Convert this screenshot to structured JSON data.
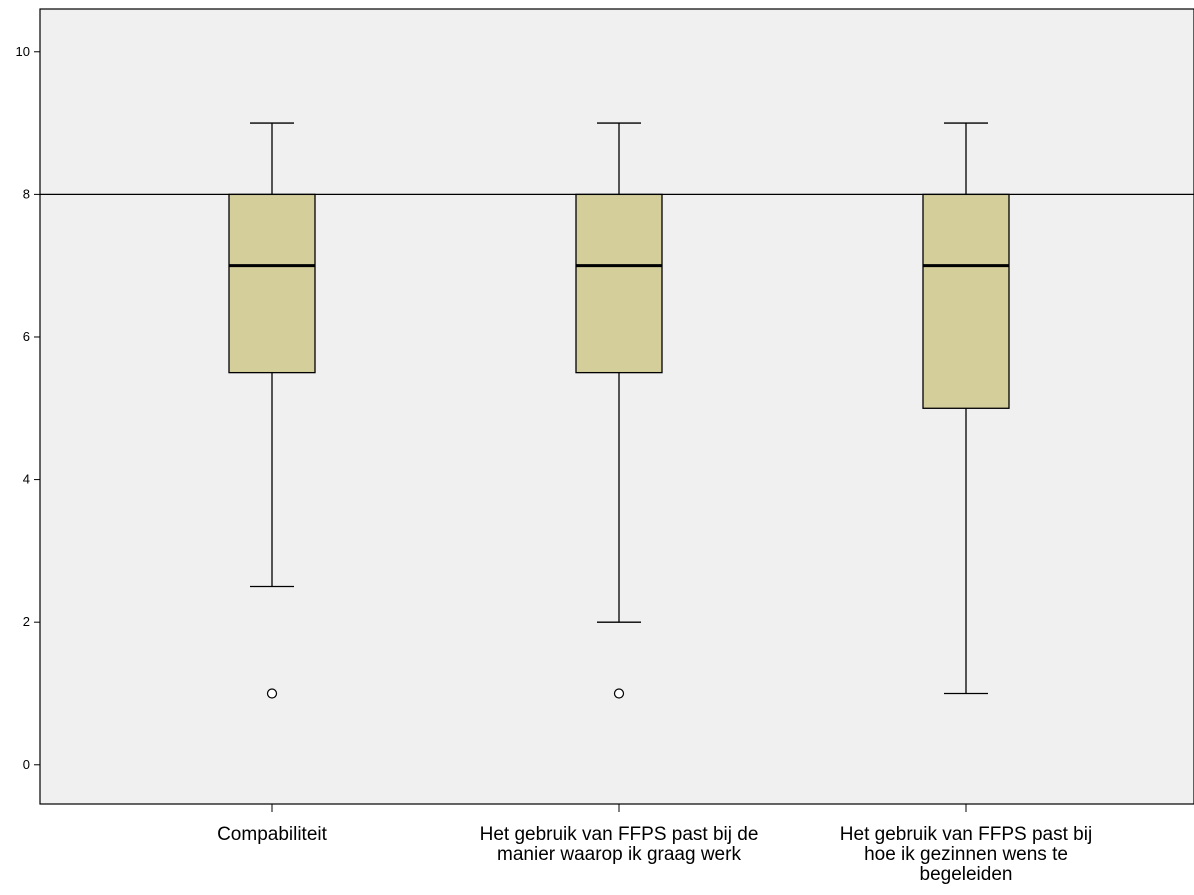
{
  "chart_data": {
    "type": "boxplot",
    "title": "",
    "xlabel": "",
    "ylabel": "",
    "ylim": [
      -0.55,
      10.6
    ],
    "yticks": [
      0,
      2,
      4,
      6,
      8,
      10
    ],
    "reference_line": 8,
    "grid": false,
    "colors": {
      "plot_background": "#f0f0f0",
      "box_fill": "#d3ce9a",
      "stroke": "#000000",
      "outlier_fill": "#ffffff"
    },
    "categories": [
      {
        "label_lines": [
          "Compabiliteit"
        ],
        "whisker_low": 2.5,
        "q1": 5.5,
        "median": 7,
        "q3": 8,
        "whisker_high": 9,
        "outliers": [
          1
        ]
      },
      {
        "label_lines": [
          "Het gebruik van FFPS past bij de",
          "manier waarop ik graag werk"
        ],
        "whisker_low": 2,
        "q1": 5.5,
        "median": 7,
        "q3": 8,
        "whisker_high": 9,
        "outliers": [
          1
        ]
      },
      {
        "label_lines": [
          "Het gebruik van FFPS past bij",
          "hoe ik gezinnen wens te",
          "begeleiden"
        ],
        "whisker_low": 1,
        "q1": 5,
        "median": 7,
        "q3": 8,
        "whisker_high": 9,
        "outliers": []
      }
    ]
  }
}
